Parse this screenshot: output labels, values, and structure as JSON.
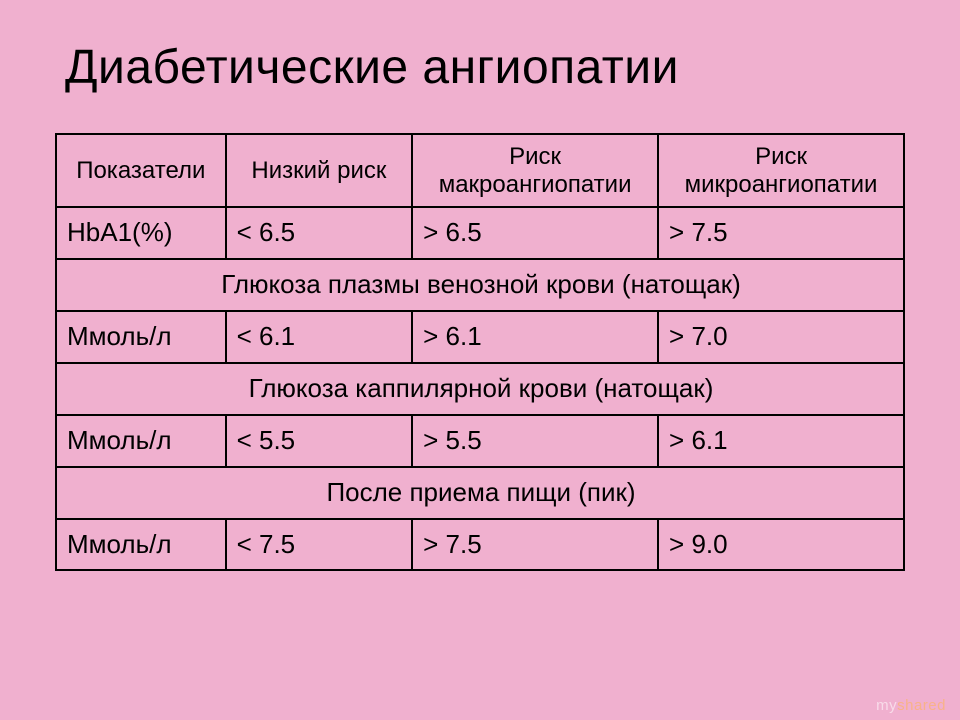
{
  "title": "Диабетические ангиопатии",
  "table": {
    "headers": [
      "Показатели",
      "Низкий риск",
      "Риск макроангиопатии",
      "Риск микроангиопатии"
    ],
    "rows": [
      {
        "kind": "data",
        "cells": [
          "HbA1(%)",
          "< 6.5",
          "> 6.5",
          "> 7.5"
        ]
      },
      {
        "kind": "span",
        "text": "Глюкоза плазмы венозной крови (натощак)"
      },
      {
        "kind": "data",
        "cells": [
          "Ммоль/л",
          "< 6.1",
          "> 6.1",
          "> 7.0"
        ]
      },
      {
        "kind": "span",
        "text": "Глюкоза каппилярной крови (натощак)"
      },
      {
        "kind": "data",
        "cells": [
          "Ммоль/л",
          "< 5.5",
          "> 5.5",
          "> 6.1"
        ]
      },
      {
        "kind": "span",
        "text": "После приема пищи (пик)"
      },
      {
        "kind": "data",
        "cells": [
          "Ммоль/л",
          "< 7.5",
          "> 7.5",
          "> 9.0"
        ]
      }
    ],
    "col_widths_pct": [
      20,
      22,
      29,
      29
    ],
    "border_color": "#000000",
    "background_color": "#f0b0cf",
    "header_fontsize_pt": 18,
    "cell_fontsize_pt": 20
  },
  "watermark": {
    "left": "my",
    "right": "shared"
  },
  "styling": {
    "slide_background": "#f0b0cf",
    "title_fontsize_pt": 36,
    "title_color": "#000000",
    "font_family": "Arial"
  }
}
